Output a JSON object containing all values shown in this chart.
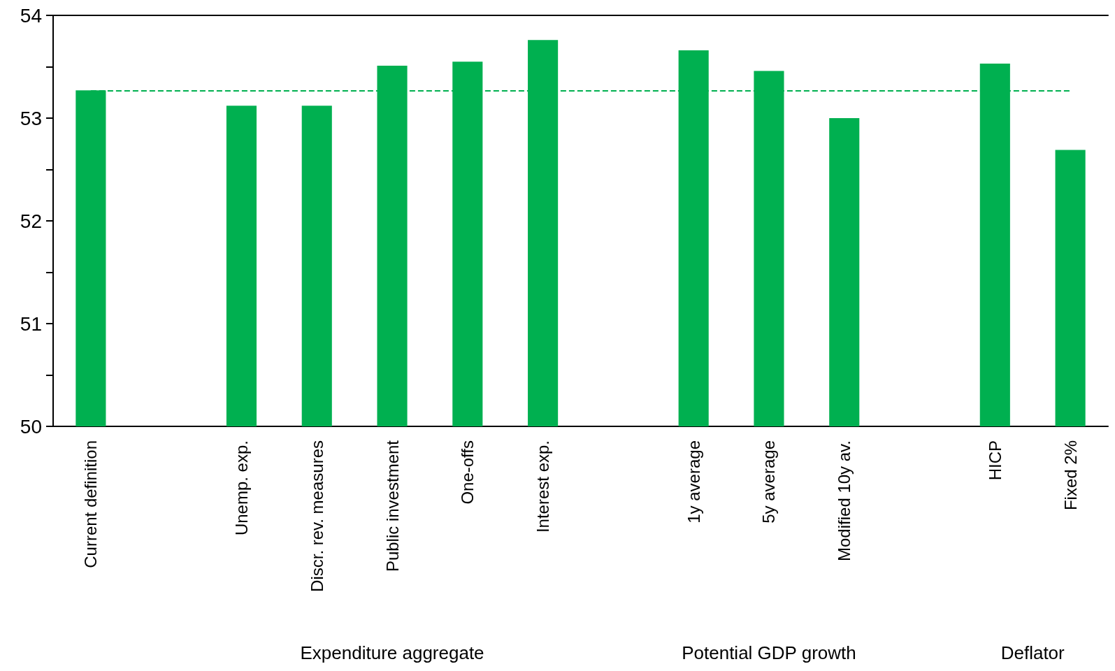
{
  "chart_data": {
    "type": "bar",
    "categories": [
      "Current definition",
      null,
      "Unemp. exp.",
      "Discr. rev. measures",
      "Public investment",
      "One-offs",
      "Interest exp.",
      null,
      "1y average",
      "5y average",
      "Modified 10y av.",
      null,
      "HICP",
      "Fixed 2%"
    ],
    "values": [
      53.27,
      null,
      53.12,
      53.12,
      53.51,
      53.55,
      53.76,
      null,
      53.66,
      53.46,
      53.0,
      null,
      53.53,
      52.69
    ],
    "color": "#00b050",
    "ylim": [
      50,
      54
    ],
    "yticks": [
      50,
      {
        "value": 50.5,
        "label": null
      },
      51,
      {
        "value": 51.5,
        "label": null
      },
      52,
      {
        "value": 52.5,
        "label": null
      },
      53,
      {
        "value": 53.5,
        "label": null
      },
      54
    ],
    "ref_lines": [
      {
        "axis": "y",
        "value": 53.27,
        "color": "#00b050",
        "line_style": "dashed"
      }
    ],
    "annotations": [
      "Expenditure aggregate",
      "Potential GDP growth",
      "Deflator"
    ]
  }
}
